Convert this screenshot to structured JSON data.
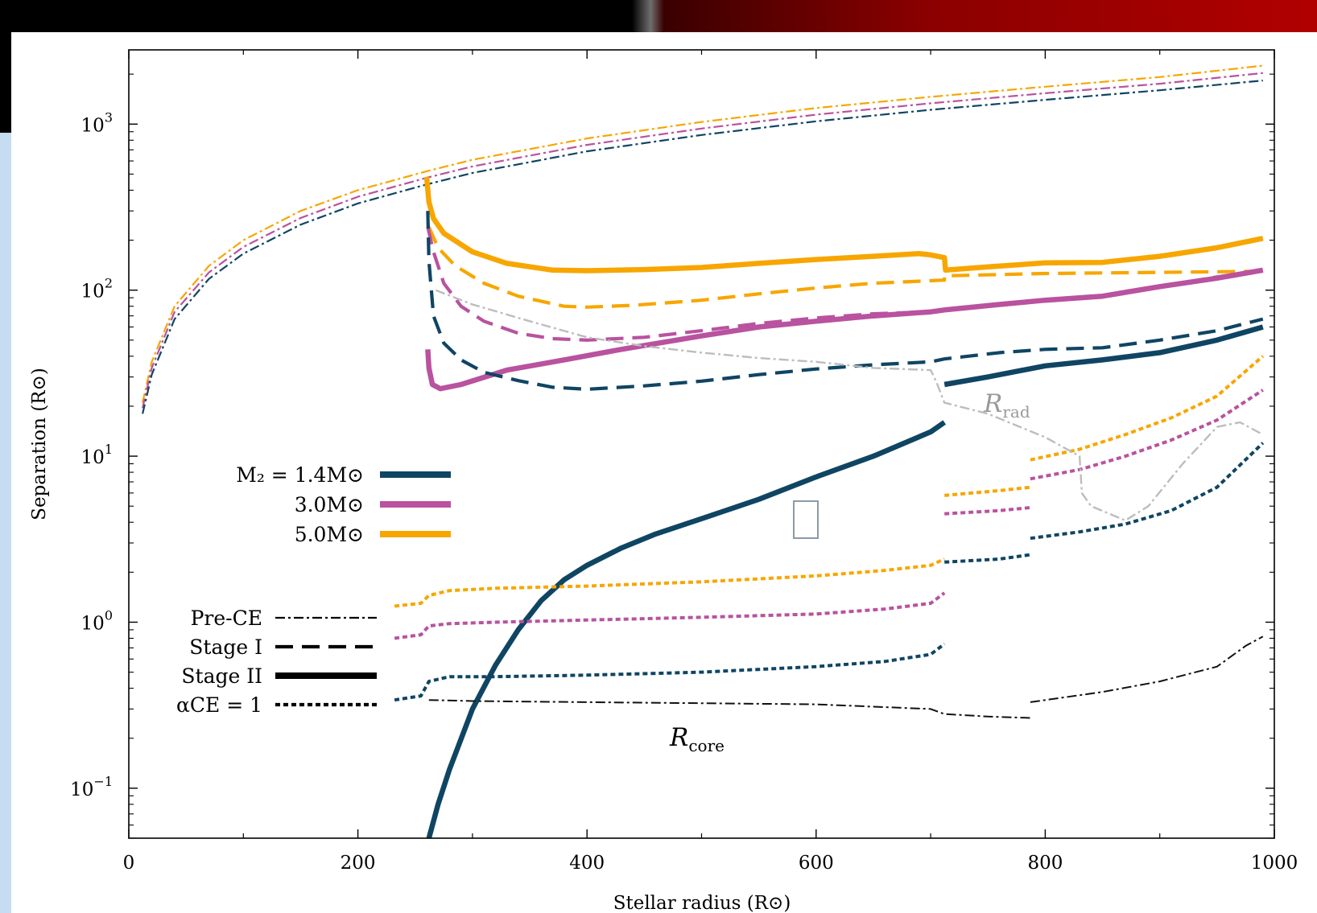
{
  "colors": {
    "m14": "#0f4563",
    "m30": "#b9529f",
    "m50": "#f7a600",
    "rrad": "#bdbdbd",
    "rcore": "#111111"
  },
  "chart_data": {
    "type": "line",
    "xlabel": "Stellar radius (R⊙)",
    "ylabel": "Separation (R⊙)",
    "xlim": [
      0,
      1000
    ],
    "ylim": [
      0.05,
      2800
    ],
    "yscale": "log",
    "x_ticks": [
      "0",
      "200",
      "400",
      "600",
      "800",
      "1000"
    ],
    "y_ticks": [
      {
        "value": 0.1,
        "base": "10",
        "exp": "−1"
      },
      {
        "value": 1,
        "base": "10",
        "exp": "0"
      },
      {
        "value": 10,
        "base": "10",
        "exp": "1"
      },
      {
        "value": 100,
        "base": "10",
        "exp": "2"
      },
      {
        "value": 1000,
        "base": "10",
        "exp": "3"
      }
    ],
    "legend_mass": {
      "placement": "left-middle",
      "entries": [
        {
          "key": "m14",
          "label": "M₂ = 1.4M⊙"
        },
        {
          "key": "m30",
          "label": "3.0M⊙"
        },
        {
          "key": "m50",
          "label": "5.0M⊙"
        }
      ]
    },
    "legend_style": {
      "placement": "left-lower",
      "entries": [
        {
          "key": "pre",
          "label": "Pre-CE"
        },
        {
          "key": "stage1",
          "label": "Stage I"
        },
        {
          "key": "stage2",
          "label": "Stage II"
        },
        {
          "key": "alpha",
          "label": "αCE = 1"
        }
      ]
    },
    "annotations": {
      "rrad": {
        "main": "R",
        "sub": "rad"
      },
      "rcore": {
        "main": "R",
        "sub": "core"
      }
    },
    "series": [
      {
        "mass": "m50",
        "style": "pre",
        "points": [
          [
            12,
            21
          ],
          [
            20,
            37
          ],
          [
            40,
            80
          ],
          [
            70,
            140
          ],
          [
            100,
            200
          ],
          [
            150,
            300
          ],
          [
            200,
            400
          ],
          [
            260,
            520
          ],
          [
            300,
            610
          ],
          [
            400,
            820
          ],
          [
            500,
            1030
          ],
          [
            600,
            1250
          ],
          [
            700,
            1460
          ],
          [
            800,
            1680
          ],
          [
            900,
            1920
          ],
          [
            990,
            2250
          ]
        ]
      },
      {
        "mass": "m30",
        "style": "pre",
        "points": [
          [
            12,
            19.5
          ],
          [
            20,
            34
          ],
          [
            40,
            74
          ],
          [
            70,
            128
          ],
          [
            100,
            182
          ],
          [
            150,
            272
          ],
          [
            200,
            365
          ],
          [
            260,
            475
          ],
          [
            300,
            556
          ],
          [
            400,
            750
          ],
          [
            500,
            940
          ],
          [
            600,
            1140
          ],
          [
            700,
            1335
          ],
          [
            800,
            1535
          ],
          [
            900,
            1750
          ],
          [
            990,
            2030
          ]
        ]
      },
      {
        "mass": "m14",
        "style": "pre",
        "points": [
          [
            12,
            18
          ],
          [
            20,
            31
          ],
          [
            40,
            67
          ],
          [
            70,
            117
          ],
          [
            100,
            166
          ],
          [
            150,
            248
          ],
          [
            200,
            333
          ],
          [
            260,
            433
          ],
          [
            300,
            508
          ],
          [
            400,
            686
          ],
          [
            500,
            860
          ],
          [
            600,
            1040
          ],
          [
            700,
            1220
          ],
          [
            800,
            1400
          ],
          [
            900,
            1600
          ],
          [
            990,
            1830
          ]
        ]
      },
      {
        "mass": "m50",
        "style": "stage2",
        "points": [
          [
            260,
            480
          ],
          [
            262,
            340
          ],
          [
            266,
            270
          ],
          [
            275,
            220
          ],
          [
            300,
            170
          ],
          [
            330,
            145
          ],
          [
            370,
            132
          ],
          [
            400,
            131
          ],
          [
            450,
            133
          ],
          [
            500,
            137
          ],
          [
            550,
            145
          ],
          [
            600,
            153
          ],
          [
            650,
            160
          ],
          [
            690,
            166
          ],
          [
            700,
            163
          ],
          [
            712,
            157
          ],
          [
            713,
            132
          ],
          [
            750,
            138
          ],
          [
            800,
            146
          ],
          [
            850,
            147
          ],
          [
            900,
            160
          ],
          [
            950,
            180
          ],
          [
            990,
            205
          ]
        ]
      },
      {
        "mass": "m50",
        "style": "stage1",
        "points": [
          [
            262,
            240
          ],
          [
            270,
            180
          ],
          [
            285,
            140
          ],
          [
            310,
            110
          ],
          [
            340,
            92
          ],
          [
            380,
            80
          ],
          [
            400,
            79
          ],
          [
            440,
            81
          ],
          [
            500,
            87
          ],
          [
            550,
            95
          ],
          [
            600,
            103
          ],
          [
            650,
            110
          ],
          [
            712,
            115
          ],
          [
            712,
            122
          ],
          [
            800,
            126
          ],
          [
            900,
            128
          ],
          [
            990,
            130
          ]
        ]
      },
      {
        "mass": "m30",
        "style": "stage1",
        "points": [
          [
            261,
            240
          ],
          [
            266,
            170
          ],
          [
            275,
            110
          ],
          [
            290,
            80
          ],
          [
            310,
            65
          ],
          [
            340,
            55
          ],
          [
            370,
            51
          ],
          [
            400,
            50
          ],
          [
            450,
            52
          ],
          [
            500,
            57
          ],
          [
            550,
            63
          ],
          [
            600,
            68
          ],
          [
            650,
            72
          ],
          [
            700,
            74
          ],
          [
            712,
            76
          ],
          [
            760,
            82
          ],
          [
            800,
            87
          ],
          [
            850,
            92
          ],
          [
            900,
            105
          ],
          [
            950,
            120
          ],
          [
            990,
            132
          ]
        ]
      },
      {
        "mass": "m30",
        "style": "stage2",
        "points": [
          [
            261,
            44
          ],
          [
            262,
            34
          ],
          [
            265,
            27
          ],
          [
            272,
            25.5
          ],
          [
            290,
            27
          ],
          [
            330,
            33
          ],
          [
            380,
            38
          ],
          [
            430,
            44
          ],
          [
            500,
            53
          ],
          [
            550,
            60
          ],
          [
            600,
            65
          ],
          [
            650,
            70
          ],
          [
            700,
            74
          ],
          [
            712,
            76
          ],
          [
            760,
            82
          ],
          [
            800,
            87
          ],
          [
            850,
            92
          ],
          [
            900,
            105
          ],
          [
            950,
            118
          ],
          [
            990,
            132
          ]
        ]
      },
      {
        "mass": "m14",
        "style": "stage1",
        "points": [
          [
            261,
            300
          ],
          [
            262,
            150
          ],
          [
            266,
            70
          ],
          [
            275,
            48
          ],
          [
            290,
            38
          ],
          [
            310,
            32
          ],
          [
            340,
            28.5
          ],
          [
            370,
            26
          ],
          [
            400,
            25.3
          ],
          [
            450,
            26.5
          ],
          [
            500,
            28.3
          ],
          [
            550,
            31
          ],
          [
            600,
            33.5
          ],
          [
            650,
            35.5
          ],
          [
            700,
            37
          ],
          [
            712,
            38.5
          ],
          [
            760,
            42
          ],
          [
            800,
            44
          ],
          [
            850,
            45
          ],
          [
            900,
            50
          ],
          [
            950,
            57
          ],
          [
            990,
            67
          ]
        ]
      },
      {
        "mass": "m14",
        "style": "stage2",
        "points": [
          [
            262,
            0.05
          ],
          [
            270,
            0.08
          ],
          [
            280,
            0.13
          ],
          [
            300,
            0.3
          ],
          [
            320,
            0.55
          ],
          [
            340,
            0.9
          ],
          [
            360,
            1.35
          ],
          [
            380,
            1.8
          ],
          [
            400,
            2.2
          ],
          [
            430,
            2.8
          ],
          [
            460,
            3.4
          ],
          [
            500,
            4.2
          ],
          [
            550,
            5.5
          ],
          [
            600,
            7.5
          ],
          [
            650,
            10
          ],
          [
            700,
            14
          ],
          [
            712,
            16
          ]
        ]
      },
      {
        "mass": "m14",
        "style": "stage2",
        "points": [
          [
            712,
            27
          ],
          [
            750,
            30
          ],
          [
            800,
            35
          ],
          [
            850,
            38
          ],
          [
            900,
            42
          ],
          [
            950,
            50
          ],
          [
            990,
            60
          ]
        ]
      },
      {
        "mass": "m50",
        "style": "alpha",
        "points": [
          [
            232,
            1.25
          ],
          [
            255,
            1.3
          ],
          [
            262,
            1.45
          ],
          [
            280,
            1.55
          ],
          [
            320,
            1.6
          ],
          [
            400,
            1.65
          ],
          [
            500,
            1.75
          ],
          [
            600,
            1.9
          ],
          [
            660,
            2.05
          ],
          [
            700,
            2.2
          ],
          [
            712,
            2.4
          ]
        ]
      },
      {
        "mass": "m50",
        "style": "alpha",
        "points": [
          [
            712,
            5.8
          ],
          [
            760,
            6.2
          ],
          [
            787,
            6.5
          ]
        ]
      },
      {
        "mass": "m50",
        "style": "alpha",
        "points": [
          [
            787,
            9.5
          ],
          [
            830,
            11
          ],
          [
            870,
            13.5
          ],
          [
            910,
            17
          ],
          [
            950,
            23
          ],
          [
            990,
            40
          ]
        ]
      },
      {
        "mass": "m30",
        "style": "alpha",
        "points": [
          [
            232,
            0.8
          ],
          [
            255,
            0.84
          ],
          [
            262,
            0.95
          ],
          [
            280,
            0.98
          ],
          [
            320,
            1.0
          ],
          [
            400,
            1.03
          ],
          [
            500,
            1.07
          ],
          [
            600,
            1.12
          ],
          [
            660,
            1.2
          ],
          [
            700,
            1.3
          ],
          [
            712,
            1.5
          ]
        ]
      },
      {
        "mass": "m30",
        "style": "alpha",
        "points": [
          [
            712,
            4.5
          ],
          [
            760,
            4.7
          ],
          [
            787,
            4.9
          ]
        ]
      },
      {
        "mass": "m30",
        "style": "alpha",
        "points": [
          [
            787,
            7.3
          ],
          [
            830,
            8.3
          ],
          [
            870,
            10
          ],
          [
            910,
            12.5
          ],
          [
            950,
            16.5
          ],
          [
            990,
            25
          ]
        ]
      },
      {
        "mass": "m14",
        "style": "alpha",
        "points": [
          [
            232,
            0.34
          ],
          [
            255,
            0.36
          ],
          [
            262,
            0.44
          ],
          [
            280,
            0.47
          ],
          [
            320,
            0.47
          ],
          [
            400,
            0.48
          ],
          [
            500,
            0.5
          ],
          [
            600,
            0.54
          ],
          [
            660,
            0.58
          ],
          [
            700,
            0.64
          ],
          [
            712,
            0.74
          ]
        ]
      },
      {
        "mass": "m14",
        "style": "alpha",
        "points": [
          [
            712,
            2.3
          ],
          [
            760,
            2.4
          ],
          [
            787,
            2.55
          ]
        ]
      },
      {
        "mass": "m14",
        "style": "alpha",
        "points": [
          [
            787,
            3.2
          ],
          [
            830,
            3.5
          ],
          [
            870,
            3.9
          ],
          [
            910,
            4.7
          ],
          [
            950,
            6.5
          ],
          [
            990,
            12
          ]
        ]
      },
      {
        "mass": "rrad",
        "style": "pre",
        "points": [
          [
            268,
            100
          ],
          [
            300,
            82
          ],
          [
            350,
            65
          ],
          [
            400,
            52
          ],
          [
            450,
            46
          ],
          [
            500,
            42
          ],
          [
            550,
            39
          ],
          [
            600,
            37
          ],
          [
            650,
            34
          ],
          [
            700,
            33
          ],
          [
            705,
            28
          ],
          [
            712,
            21
          ],
          [
            750,
            18
          ],
          [
            800,
            13
          ],
          [
            830,
            10
          ],
          [
            832,
            6
          ],
          [
            840,
            5
          ],
          [
            870,
            4.1
          ],
          [
            890,
            5
          ],
          [
            920,
            9
          ],
          [
            950,
            15
          ],
          [
            970,
            16
          ],
          [
            990,
            13.5
          ]
        ]
      },
      {
        "mass": "rcore",
        "style": "pre",
        "points": [
          [
            262,
            0.34
          ],
          [
            300,
            0.335
          ],
          [
            400,
            0.33
          ],
          [
            500,
            0.325
          ],
          [
            600,
            0.32
          ],
          [
            650,
            0.31
          ],
          [
            700,
            0.3
          ],
          [
            712,
            0.28
          ],
          [
            750,
            0.27
          ],
          [
            787,
            0.265
          ]
        ]
      },
      {
        "mass": "rcore",
        "style": "pre",
        "points": [
          [
            787,
            0.33
          ],
          [
            850,
            0.38
          ],
          [
            900,
            0.44
          ],
          [
            950,
            0.54
          ],
          [
            975,
            0.72
          ],
          [
            990,
            0.82
          ]
        ]
      }
    ]
  }
}
